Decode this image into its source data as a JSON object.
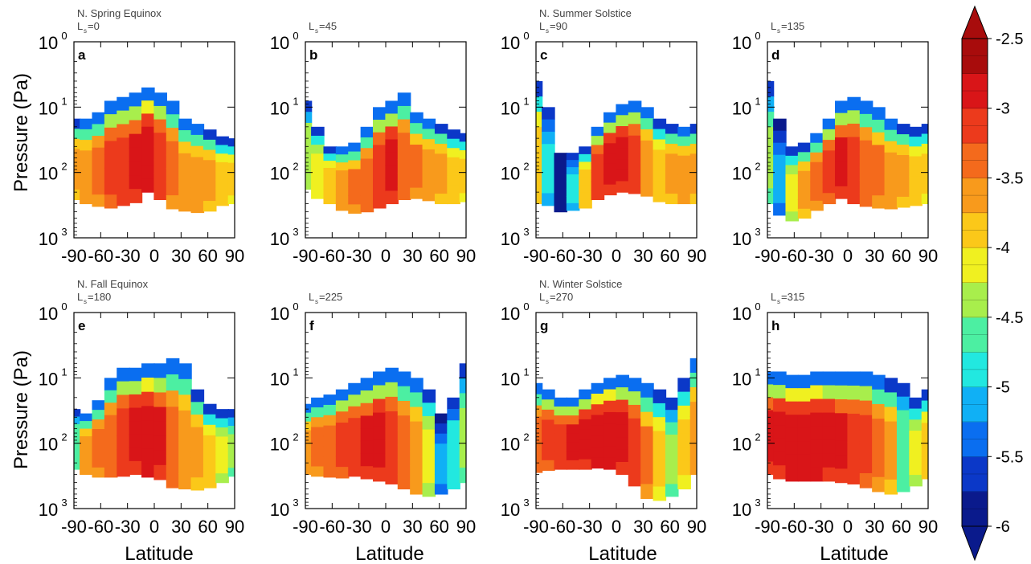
{
  "chart_data": {
    "type": "heatmap",
    "x_ticks": [
      "-90",
      "-60",
      "-30",
      "0",
      "30",
      "60",
      "90"
    ],
    "y_ticks": [
      "10",
      "10",
      "10",
      "10"
    ],
    "y_tick_exponents": [
      "0",
      "1",
      "2",
      "3"
    ],
    "xlabel": "Latitude",
    "ylabel": "Pressure (Pa)",
    "xlim": [
      -90,
      90
    ],
    "ylim": [
      1000,
      1
    ],
    "y_scale": "log",
    "colorbar": {
      "range": [
        -6,
        -2.5
      ],
      "ticks": [
        "-2.5",
        "-3",
        "-3.5",
        "-4",
        "-4.5",
        "-5",
        "-5.5",
        "-6"
      ],
      "colors": [
        "#0a1a8c",
        "#0b38c8",
        "#0a6ef0",
        "#10b0f5",
        "#22e8e0",
        "#4cefa2",
        "#a8ee4c",
        "#f0f020",
        "#fbc819",
        "#f89a1c",
        "#f46a1c",
        "#ec3a1c",
        "#d91518",
        "#a80c0c"
      ]
    },
    "panels": [
      {
        "letter": "a",
        "season": "N. Spring Equinox",
        "ls_value": "=0",
        "top_p": [
          15,
          15,
          12,
          8,
          7,
          6,
          5,
          6,
          8,
          15,
          18,
          22,
          28,
          30
        ],
        "bot_p": [
          260,
          300,
          330,
          350,
          320,
          290,
          200,
          260,
          360,
          390,
          410,
          390,
          320,
          300
        ],
        "core": [
          -3.7,
          -3.6,
          -3.4,
          -3.2,
          -3.1,
          -3.0,
          -2.8,
          -3.1,
          -3.4,
          -3.6,
          -3.6,
          -3.7,
          -3.8,
          -3.9
        ]
      },
      {
        "letter": "b",
        "season": "",
        "ls_value": "=45",
        "top_p": [
          8,
          20,
          40,
          40,
          35,
          20,
          10,
          8,
          6,
          12,
          15,
          18,
          22,
          25
        ],
        "bot_p": [
          180,
          250,
          300,
          380,
          420,
          400,
          350,
          300,
          260,
          250,
          270,
          300,
          300,
          280
        ],
        "core": [
          -4.3,
          -4.1,
          -3.8,
          -3.6,
          -3.5,
          -3.3,
          -3.1,
          -2.9,
          -3.3,
          -3.5,
          -3.6,
          -3.7,
          -3.8,
          -3.9
        ]
      },
      {
        "letter": "c",
        "season": "N. Summer Solstice",
        "ls_value": "=90",
        "top_p": [
          4,
          10,
          50,
          50,
          40,
          20,
          12,
          9,
          8,
          10,
          15,
          18,
          20,
          18
        ],
        "bot_p": [
          300,
          320,
          400,
          380,
          350,
          260,
          220,
          200,
          210,
          230,
          280,
          300,
          300,
          300
        ],
        "core": [
          -3.8,
          -5.0,
          -5.8,
          -5.0,
          -3.8,
          -3.1,
          -2.9,
          -2.9,
          -3.1,
          -3.6,
          -3.8,
          -3.7,
          -3.6,
          -3.7
        ]
      },
      {
        "letter": "d",
        "season": "",
        "ls_value": "=135",
        "top_p": [
          4,
          15,
          40,
          35,
          25,
          15,
          8,
          7,
          8,
          10,
          15,
          18,
          20,
          18
        ],
        "bot_p": [
          300,
          450,
          550,
          500,
          380,
          300,
          250,
          300,
          330,
          350,
          360,
          340,
          320,
          300
        ],
        "core": [
          -4.5,
          -5.2,
          -4.2,
          -3.7,
          -3.4,
          -3.2,
          -3.0,
          -3.1,
          -3.3,
          -3.5,
          -3.6,
          -3.7,
          -3.8,
          -3.9
        ]
      },
      {
        "letter": "e",
        "season": "N. Fall Equinox",
        "ls_value": "=180",
        "top_p": [
          30,
          35,
          22,
          10,
          7,
          7,
          6,
          6,
          5,
          6,
          15,
          25,
          30,
          30
        ],
        "bot_p": [
          250,
          300,
          330,
          330,
          320,
          300,
          330,
          360,
          480,
          500,
          520,
          480,
          400,
          320
        ],
        "core": [
          -4.6,
          -3.6,
          -3.4,
          -3.3,
          -3.1,
          -2.9,
          -2.8,
          -3.0,
          -3.3,
          -3.6,
          -3.7,
          -3.8,
          -4.2,
          -4.5
        ]
      },
      {
        "letter": "f",
        "season": "",
        "ls_value": "=225",
        "top_p": [
          25,
          20,
          18,
          15,
          12,
          10,
          8,
          7,
          8,
          10,
          15,
          35,
          20,
          6
        ],
        "bot_p": [
          300,
          320,
          330,
          340,
          320,
          350,
          380,
          420,
          500,
          600,
          650,
          600,
          500,
          400
        ],
        "core": [
          -3.6,
          -3.4,
          -3.3,
          -3.2,
          -3.1,
          -3.0,
          -2.9,
          -3.1,
          -3.3,
          -3.6,
          -4.2,
          -5.2,
          -4.8,
          -4.4
        ]
      },
      {
        "letter": "g",
        "season": "N. Winter Solstice",
        "ls_value": "=270",
        "top_p": [
          12,
          15,
          20,
          20,
          15,
          12,
          10,
          9,
          10,
          12,
          15,
          20,
          10,
          5
        ],
        "bot_p": [
          280,
          260,
          250,
          250,
          250,
          240,
          250,
          300,
          450,
          700,
          750,
          650,
          500,
          300
        ],
        "core": [
          -3.3,
          -3.2,
          -3.1,
          -3.0,
          -2.9,
          -2.8,
          -2.8,
          -2.9,
          -3.1,
          -3.5,
          -4.0,
          -4.5,
          -4.0,
          -3.6
        ]
      },
      {
        "letter": "h",
        "season": "",
        "ls_value": "=315",
        "top_p": [
          8,
          8,
          9,
          9,
          8,
          8,
          8,
          8,
          8,
          9,
          10,
          12,
          20,
          15
        ],
        "bot_p": [
          300,
          350,
          380,
          380,
          380,
          380,
          400,
          420,
          480,
          550,
          600,
          550,
          450,
          350
        ],
        "core": [
          -3.0,
          -2.9,
          -2.8,
          -2.8,
          -2.8,
          -2.9,
          -3.0,
          -3.1,
          -3.2,
          -3.4,
          -3.7,
          -4.6,
          -4.2,
          -3.8
        ]
      }
    ]
  }
}
